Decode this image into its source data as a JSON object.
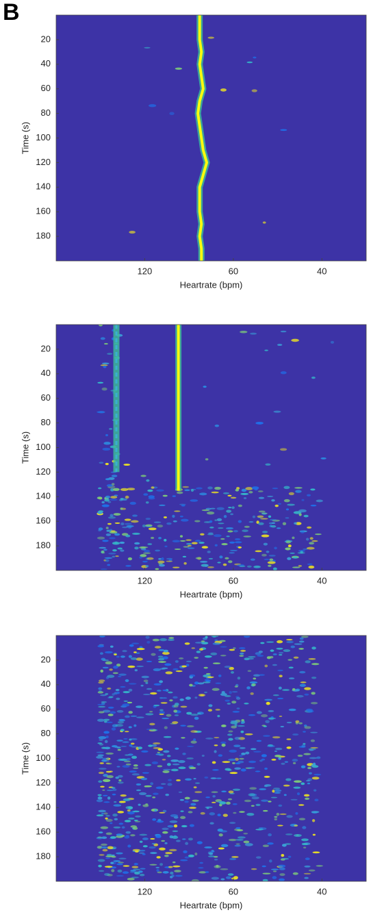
{
  "panel_label": "B",
  "chart_data": [
    {
      "type": "heatmap",
      "xlabel": "Heartrate (bpm)",
      "ylabel": "Time (s)",
      "xlim": [
        0,
        1.75
      ],
      "xticks": [
        {
          "value": 0.5,
          "label": "120"
        },
        {
          "value": 1.0,
          "label": "60"
        },
        {
          "value": 1.5,
          "label": "40"
        }
      ],
      "ylim": [
        0,
        200
      ],
      "yticks": [
        20,
        40,
        60,
        80,
        100,
        120,
        140,
        160,
        180
      ],
      "background": "#3d33a6",
      "series": [
        {
          "color": "#f9fb0e",
          "x": [
            0.81,
            0.81,
            0.81,
            0.82,
            0.81,
            0.82,
            0.83,
            0.81,
            0.8,
            0.81,
            0.82,
            0.83,
            0.85,
            0.83,
            0.81,
            0.81,
            0.81,
            0.82,
            0.81,
            0.82,
            0.82
          ],
          "y": [
            0,
            10,
            20,
            30,
            40,
            50,
            60,
            70,
            80,
            90,
            100,
            110,
            120,
            130,
            140,
            150,
            160,
            170,
            180,
            190,
            200
          ]
        }
      ]
    },
    {
      "type": "heatmap",
      "xlabel": "Heartrate (bpm)",
      "ylabel": "Time (s)",
      "xlim": [
        0,
        1.75
      ],
      "xticks": [
        {
          "value": 0.5,
          "label": "120"
        },
        {
          "value": 1.0,
          "label": "60"
        },
        {
          "value": 1.5,
          "label": "40"
        }
      ],
      "ylim": [
        0,
        200
      ],
      "yticks": [
        20,
        40,
        60,
        80,
        100,
        120,
        140,
        160,
        180
      ],
      "background": "#3d33a6",
      "series": [
        {
          "color": "#f9fb0e",
          "x": [
            0.69,
            0.69,
            0.69,
            0.69,
            0.69,
            0.69,
            0.69,
            0.69,
            0.69,
            0.69,
            0.69,
            0.69,
            0.69,
            0.69,
            0.69
          ],
          "y": [
            0,
            10,
            20,
            30,
            40,
            50,
            60,
            70,
            80,
            90,
            100,
            110,
            120,
            130,
            135
          ]
        },
        {
          "color": "#3ab0d0",
          "x": [
            0.34,
            0.34,
            0.34,
            0.34,
            0.34,
            0.34,
            0.34,
            0.34,
            0.34,
            0.34,
            0.34,
            0.34,
            0.34
          ],
          "y": [
            0,
            10,
            20,
            30,
            40,
            50,
            60,
            70,
            80,
            90,
            100,
            110,
            120
          ]
        }
      ]
    },
    {
      "type": "heatmap",
      "xlabel": "Heartrate (bpm)",
      "ylabel": "Time (s)",
      "xlim": [
        0,
        1.75
      ],
      "xticks": [
        {
          "value": 0.5,
          "label": "120"
        },
        {
          "value": 1.0,
          "label": "60"
        },
        {
          "value": 1.5,
          "label": "40"
        }
      ],
      "ylim": [
        0,
        200
      ],
      "yticks": [
        20,
        40,
        60,
        80,
        100,
        120,
        140,
        160,
        180
      ],
      "background": "#3d33a6",
      "series": []
    }
  ]
}
